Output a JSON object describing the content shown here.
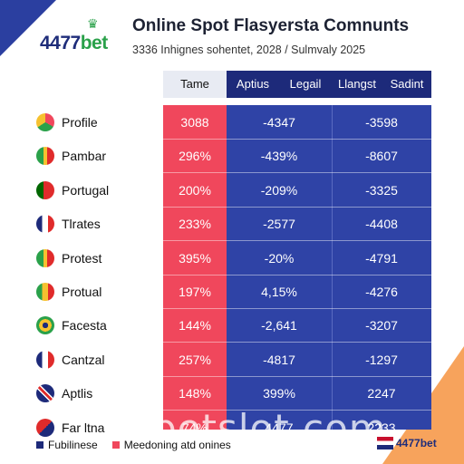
{
  "brand": {
    "name_main": "4477",
    "name_suffix": "bet",
    "footer_name": "4477bet",
    "mark_color": "#2aa14a"
  },
  "header": {
    "title": "Online Spot Flasyersta Comnunts",
    "subtitle": "3336 Inhignes sohentet, 2028 / Sulmvaly 2025"
  },
  "colors": {
    "accent_red": "#f0475c",
    "accent_blue": "#2f43a6",
    "header_dark": "#1d2a7a"
  },
  "chart_data": {
    "type": "table",
    "columns": [
      "Tame",
      "Aptius",
      "Legail",
      "Llangst",
      "Sadint"
    ],
    "rows": [
      {
        "country": "Profile",
        "flag": "flag-icon-multicolor",
        "values": [
          "3088",
          "-4347",
          "-3598"
        ]
      },
      {
        "country": "Pambar",
        "flag": "flag-icon-red-green",
        "values": [
          "296%",
          "-439%",
          "-8607"
        ]
      },
      {
        "country": "Portugal",
        "flag": "flag-icon-portugal",
        "values": [
          "200%",
          "-209%",
          "-3325"
        ]
      },
      {
        "country": "Tlrates",
        "flag": "flag-icon-france",
        "values": [
          "233%",
          "-2577",
          "-4408"
        ]
      },
      {
        "country": "Protest",
        "flag": "flag-icon-red-green",
        "values": [
          "395%",
          "-20%",
          "-4791"
        ]
      },
      {
        "country": "Protual",
        "flag": "flag-icon-senegal",
        "values": [
          "197%",
          "4,15%",
          "-4276"
        ]
      },
      {
        "country": "Facesta",
        "flag": "flag-icon-brazil",
        "values": [
          "144%",
          "-2,641",
          "-3207"
        ]
      },
      {
        "country": "Cantzal",
        "flag": "flag-icon-france",
        "values": [
          "257%",
          "-4817",
          "-1297"
        ]
      },
      {
        "country": "Aptlis",
        "flag": "flag-icon-uk",
        "values": [
          "148%",
          "399%",
          "2247"
        ]
      },
      {
        "country": "Far ltna",
        "flag": "flag-icon-mixed",
        "values": [
          "74%",
          "4477",
          "2233"
        ]
      }
    ]
  },
  "legend": [
    {
      "label": "Fubilinese",
      "color": "#1d2a7a"
    },
    {
      "label": "Meedoning atd onines",
      "color": "#f0475c"
    }
  ],
  "watermark": "betslot.com"
}
